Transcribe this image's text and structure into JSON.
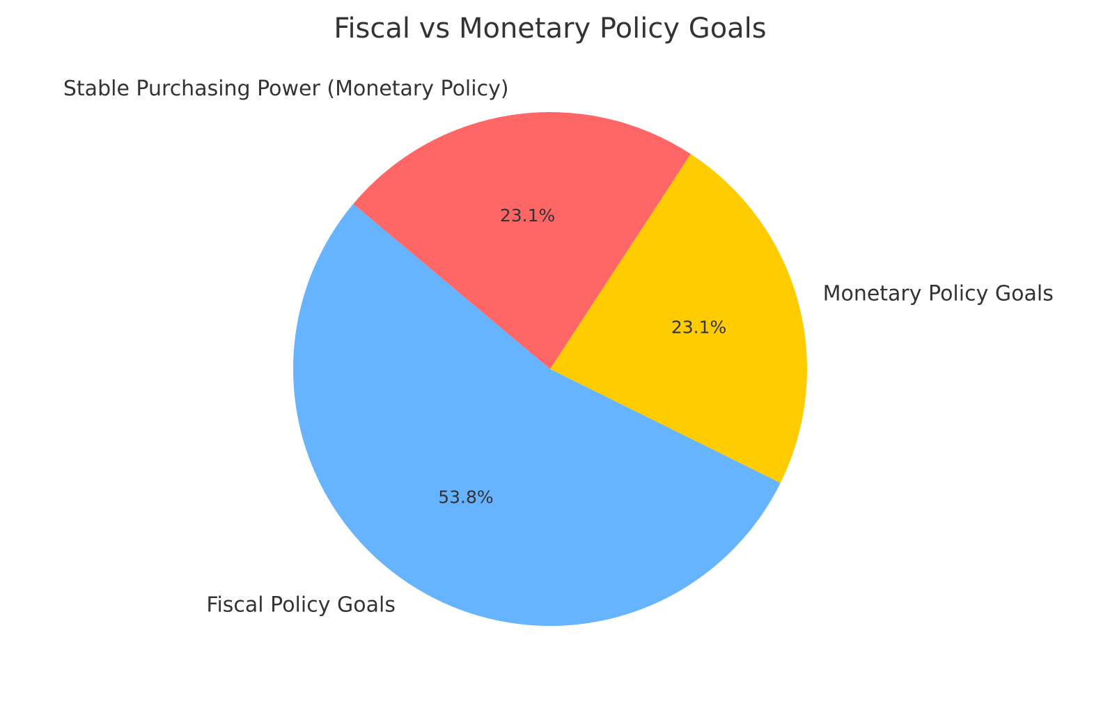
{
  "chart_data": {
    "type": "pie",
    "title": "Fiscal vs Monetary Policy Goals",
    "start_angle_deg": 140,
    "direction": "counterclockwise",
    "slices": [
      {
        "label": "Fiscal Policy Goals",
        "value": 53.8,
        "pct_label": "53.8%",
        "color": "#66b3ff"
      },
      {
        "label": "Monetary Policy Goals",
        "value": 23.1,
        "pct_label": "23.1%",
        "color": "#ffcc00"
      },
      {
        "label": "Stable Purchasing Power (Monetary Policy)",
        "value": 23.1,
        "pct_label": "23.1%",
        "color": "#ff6666"
      }
    ]
  }
}
